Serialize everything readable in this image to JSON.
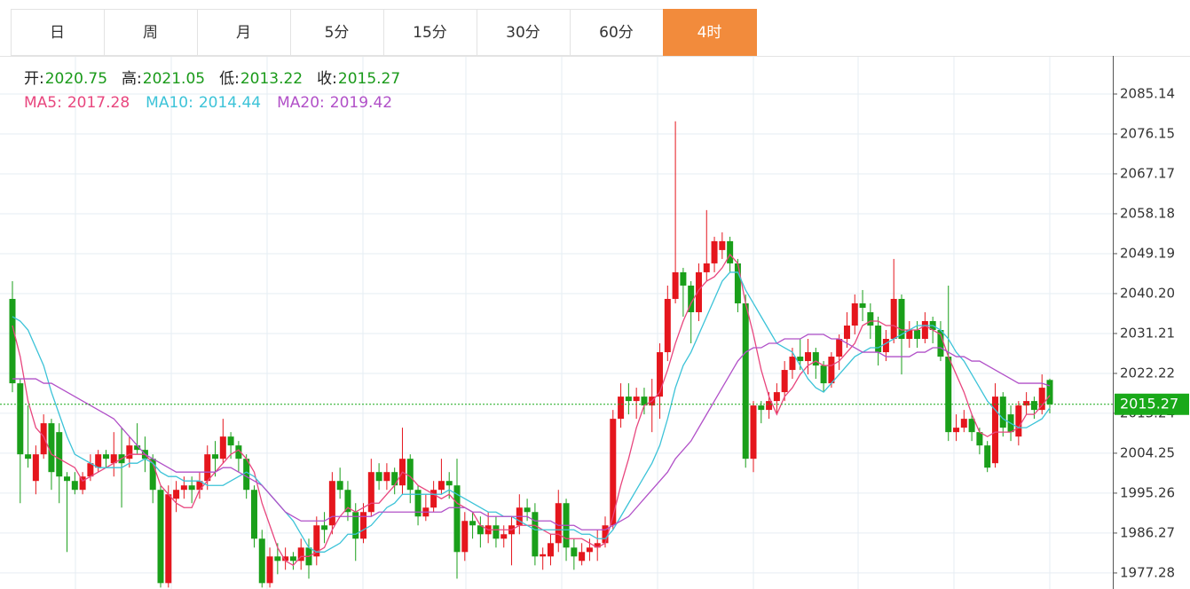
{
  "chart_data": {
    "type": "candlestick",
    "tabs": [
      "日",
      "周",
      "月",
      "5分",
      "15分",
      "30分",
      "60分",
      "4时"
    ],
    "active_tab": "4时",
    "header": [
      {
        "label": "开:",
        "value": 2020.75
      },
      {
        "label": "高:",
        "value": 2021.05
      },
      {
        "label": "低:",
        "value": 2013.22
      },
      {
        "label": "收:",
        "value": 2015.27
      }
    ],
    "up_color": "#e5161d",
    "down_color": "#1a9f1a",
    "open": [
      2039,
      2020,
      2004,
      1998,
      2004,
      2011,
      2009,
      1999,
      1998,
      1996,
      1999,
      2001,
      2004,
      2002,
      2004,
      2003,
      2006,
      2005,
      2003,
      1996,
      1975,
      1994,
      1996,
      1997,
      1996,
      1998,
      2004,
      2003,
      2008,
      2006,
      2003,
      1996,
      1985,
      1975,
      1981,
      1980,
      1981,
      1980,
      1983,
      1981,
      1988,
      1988,
      1998,
      1996,
      1991,
      1985,
      1991,
      2000,
      1998,
      2000,
      1997,
      2003,
      1996,
      1990,
      1992,
      1996,
      1998,
      1997,
      1982,
      1989,
      1988,
      1986,
      1988,
      1985,
      1986,
      1988,
      1992,
      1991,
      1981,
      1981,
      1984,
      1993,
      1983,
      1980,
      1982,
      1983,
      1984,
      1988,
      2012,
      2017,
      2016,
      2017,
      2015,
      2017,
      2027,
      2039,
      2045,
      2042,
      2036,
      2045,
      2047,
      2050,
      2052,
      2047,
      2038,
      2003,
      2015,
      2014,
      2016,
      2018,
      2023,
      2026,
      2025,
      2027,
      2024,
      2020,
      2026,
      2030,
      2033,
      2038,
      2036,
      2033,
      2027,
      2030,
      2039,
      2030,
      2032,
      2030,
      2034,
      2032,
      2026,
      2009,
      2010,
      2012,
      2009,
      2006,
      2002,
      2017,
      2013,
      2008,
      2015,
      2016,
      2014,
      2020.75
    ],
    "high": [
      2043,
      2021,
      2015,
      2006,
      2013,
      2012,
      2011,
      2000,
      2000,
      2000,
      2004,
      2005,
      2005,
      2009,
      2010,
      2008,
      2011,
      2008,
      2004,
      1997,
      1997,
      1998,
      1999,
      1999,
      2000,
      2006,
      2007,
      2012,
      2009,
      2007,
      2004,
      1997,
      1987,
      1983,
      1984,
      1983,
      1982,
      1985,
      1985,
      1990,
      1991,
      2000,
      2001,
      1998,
      1993,
      1993,
      2003,
      2002,
      2002,
      2001,
      2010,
      2004,
      1997,
      1995,
      1998,
      2003,
      2000,
      2003,
      1991,
      1991,
      1990,
      1991,
      1990,
      1988,
      1990,
      1995,
      1994,
      1993,
      1983,
      1986,
      1996,
      1994,
      1985,
      1984,
      1985,
      1987,
      1990,
      2014,
      2020,
      2020,
      2019,
      2019,
      2021,
      2029,
      2042,
      2079,
      2046,
      2043,
      2047,
      2059,
      2053,
      2054,
      2053,
      2048,
      2040,
      2016,
      2016,
      2018,
      2020,
      2025,
      2028,
      2030,
      2030,
      2028,
      2025,
      2027,
      2031,
      2036,
      2040,
      2041,
      2038,
      2035,
      2032,
      2048,
      2040,
      2034,
      2034,
      2036,
      2035,
      2034,
      2042,
      2013,
      2014,
      2013,
      2010,
      2007,
      2020,
      2018,
      2015,
      2016,
      2018,
      2017,
      2022,
      2021.05
    ],
    "low": [
      2018,
      1993,
      2001,
      1995,
      2003,
      1996,
      1993,
      1982,
      1995,
      1995,
      1998,
      2000,
      2001,
      1999,
      1992,
      2001,
      2004,
      2000,
      1993,
      1974,
      1974,
      1991,
      1994,
      1993,
      1994,
      1996,
      1999,
      2002,
      2003,
      2000,
      1994,
      1983,
      1974,
      1974,
      1977,
      1978,
      1978,
      1978,
      1976,
      1979,
      1984,
      1986,
      1994,
      1989,
      1980,
      1984,
      1990,
      1996,
      1996,
      1995,
      1995,
      1993,
      1988,
      1989,
      1991,
      1995,
      1994,
      1976,
      1980,
      1985,
      1983,
      1984,
      1983,
      1983,
      1979,
      1986,
      1989,
      1979,
      1978,
      1979,
      1982,
      1980,
      1978,
      1979,
      1980,
      1980,
      1983,
      1987,
      2010,
      2013,
      2012,
      2013,
      2009,
      2012,
      2025,
      2038,
      2035,
      2029,
      2034,
      2043,
      2045,
      2048,
      2045,
      2036,
      2001,
      2000,
      2011,
      2012,
      2013,
      2016,
      2021,
      2023,
      2022,
      2021,
      2018,
      2019,
      2023,
      2028,
      2031,
      2034,
      2030,
      2024,
      2025,
      2029,
      2022,
      2028,
      2028,
      2029,
      2029,
      2025,
      2007,
      2007,
      2009,
      2007,
      2004,
      2000,
      2001,
      2008,
      2007,
      2006,
      2013,
      2012,
      2013,
      2013.22
    ],
    "close": [
      2020,
      2004,
      2003,
      2004,
      2011,
      2000,
      1999,
      1998,
      1996,
      1999,
      2002,
      2004,
      2003,
      2004,
      2002,
      2006,
      2005,
      2003,
      1996,
      1975,
      1995,
      1996,
      1997,
      1996,
      1998,
      2004,
      2003,
      2008,
      2006,
      2003,
      1996,
      1985,
      1975,
      1981,
      1980,
      1981,
      1980,
      1983,
      1979,
      1988,
      1987,
      1998,
      1996,
      1991,
      1985,
      1991,
      2000,
      1998,
      2000,
      1997,
      2003,
      1996,
      1990,
      1992,
      1996,
      1998,
      1997,
      1982,
      1989,
      1988,
      1986,
      1988,
      1985,
      1986,
      1988,
      1992,
      1991,
      1981,
      1981.5,
      1984,
      1993,
      1983,
      1981,
      1982,
      1983,
      1984,
      1988,
      2012,
      2017,
      2016,
      2017,
      2015,
      2017,
      2027,
      2039,
      2045,
      2042,
      2036,
      2045,
      2047,
      2052,
      2052,
      2047,
      2038,
      2003,
      2015,
      2014,
      2016,
      2018,
      2023,
      2026,
      2025,
      2027,
      2024,
      2020,
      2026,
      2030,
      2033,
      2038,
      2037,
      2033,
      2027,
      2030,
      2039,
      2030,
      2032,
      2030,
      2034,
      2032,
      2026,
      2009,
      2010,
      2012,
      2009,
      2006,
      2001,
      2017,
      2010,
      2009,
      2015,
      2016,
      2014,
      2019,
      2015.27
    ],
    "ma": [
      {
        "name": "MA5:",
        "color": "#e8467e",
        "value": 2017.28,
        "values": [
          2033,
          2026,
          2016,
          2010,
          2008,
          2004,
          2003,
          2002,
          2001,
          1998,
          1999,
          2000,
          2001,
          2002,
          2003,
          2004,
          2004,
          2004,
          2002,
          1997,
          1995,
          1993,
          1992,
          1992,
          1996,
          1998,
          2000,
          2002,
          2004,
          2005,
          2003,
          2000,
          1993,
          1988,
          1983,
          1980,
          1979,
          1981,
          1981,
          1982,
          1983,
          1987,
          1990,
          1992,
          1991,
          1992,
          1993,
          1993,
          1995,
          1997,
          2000,
          1999,
          1997,
          1996,
          1995,
          1994,
          1995,
          1993,
          1992,
          1991,
          1988,
          1987,
          1987,
          1987,
          1987,
          1988,
          1988,
          1988,
          1987,
          1986,
          1986,
          1985,
          1985,
          1985,
          1984,
          1983,
          1984,
          1990,
          1997,
          2003,
          2010,
          2015,
          2016,
          2018,
          2023,
          2029,
          2034,
          2038,
          2041,
          2043,
          2044,
          2046,
          2049,
          2047,
          2038,
          2031,
          2023,
          2017,
          2013,
          2017,
          2019,
          2022,
          2024,
          2025,
          2024,
          2024,
          2025,
          2027,
          2029,
          2033,
          2034,
          2034,
          2033,
          2033,
          2032,
          2032,
          2032,
          2033,
          2032,
          2031,
          2026,
          2022,
          2018,
          2013,
          2009,
          2008,
          2009,
          2009,
          2009,
          2010,
          2013,
          2013,
          2015,
          2017.28
        ]
      },
      {
        "name": "MA10:",
        "color": "#3cc3d8",
        "value": 2014.44,
        "values": [
          2035,
          2034,
          2032,
          2028,
          2024,
          2018,
          2013,
          2008,
          2004,
          2003,
          2002,
          2001,
          2001,
          2001,
          2001,
          2002,
          2002,
          2003,
          2002,
          2000,
          1999,
          1999,
          1998,
          1998,
          1998,
          1997,
          1997,
          1997,
          1998,
          1999,
          2000,
          1999,
          1997,
          1995,
          1993,
          1991,
          1989,
          1986,
          1983,
          1982,
          1982,
          1983,
          1984,
          1986,
          1986,
          1987,
          1988,
          1990,
          1992,
          1993,
          1995,
          1995,
          1995,
          1995,
          1995,
          1995,
          1996,
          1995,
          1994,
          1993,
          1992,
          1991,
          1991,
          1990,
          1990,
          1989,
          1988,
          1987,
          1987,
          1987,
          1987,
          1987,
          1987,
          1986,
          1986,
          1985,
          1985,
          1987,
          1990,
          1993,
          1996,
          1999,
          2002,
          2006,
          2012,
          2019,
          2024,
          2027,
          2031,
          2035,
          2039,
          2043,
          2045,
          2045,
          2041,
          2038,
          2035,
          2032,
          2029,
          2028,
          2027,
          2024,
          2021,
          2019,
          2018,
          2020,
          2022,
          2024,
          2026,
          2027,
          2028,
          2028,
          2029,
          2030,
          2031,
          2032,
          2033,
          2033,
          2033,
          2032,
          2030,
          2027,
          2025,
          2022,
          2019,
          2016,
          2014,
          2012,
          2011,
          2010,
          2010,
          2011,
          2012,
          2014.44
        ]
      },
      {
        "name": "MA20:",
        "color": "#b150c8",
        "value": 2019.42,
        "values": [
          2021,
          2021,
          2021,
          2021,
          2020,
          2020,
          2019,
          2018,
          2017,
          2016,
          2015,
          2014,
          2013,
          2012,
          2010,
          2008,
          2006,
          2004,
          2003,
          2002,
          2001,
          2000,
          2000,
          2000,
          2000,
          2000,
          2000,
          2001,
          2001,
          2000,
          1999,
          1998,
          1997,
          1995,
          1993,
          1991,
          1990,
          1989,
          1989,
          1989,
          1989,
          1990,
          1990,
          1990,
          1990,
          1990,
          1990,
          1991,
          1991,
          1991,
          1991,
          1991,
          1991,
          1991,
          1991,
          1991,
          1992,
          1992,
          1992,
          1991,
          1991,
          1990,
          1990,
          1990,
          1990,
          1990,
          1990,
          1989,
          1989,
          1989,
          1988,
          1988,
          1988,
          1987,
          1987,
          1987,
          1987,
          1988,
          1989,
          1990,
          1992,
          1994,
          1996,
          1998,
          2000,
          2003,
          2005,
          2007,
          2010,
          2013,
          2016,
          2019,
          2022,
          2025,
          2027,
          2028,
          2028,
          2029,
          2029,
          2030,
          2030,
          2030,
          2031,
          2031,
          2031,
          2030,
          2030,
          2029,
          2028,
          2027,
          2027,
          2027,
          2026,
          2026,
          2026,
          2026,
          2027,
          2027,
          2028,
          2028,
          2027,
          2026,
          2026,
          2025,
          2025,
          2024,
          2023,
          2022,
          2021,
          2020,
          2020,
          2020,
          2020,
          2019.42
        ]
      }
    ],
    "last_price": 2015.27,
    "last_price_color": "#19a919",
    "ylim": [
      1973.67,
      2093.73
    ],
    "yticks": [
      2085.14,
      2076.15,
      2067.17,
      2058.18,
      2049.19,
      {
        "value": 2040.2,
        "label": "2040.20"
      },
      2031.21,
      2022.22,
      2013.24,
      2004.25,
      1995.26,
      1986.27,
      1977.28
    ],
    "grid": true
  }
}
